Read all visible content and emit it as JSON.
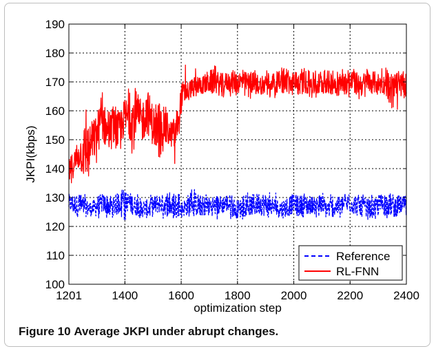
{
  "caption": {
    "label": "Figure 10",
    "text": "Average JKPI under abrupt changes."
  },
  "chart_data": {
    "type": "line",
    "title": "",
    "xlabel": "optimization step",
    "ylabel": "JKPI(kbps)",
    "xlim": [
      1201,
      2400
    ],
    "ylim": [
      100,
      190
    ],
    "xticks": [
      1201,
      1400,
      1600,
      1800,
      2000,
      2200,
      2400
    ],
    "xtick_labels": [
      "1201",
      "1400",
      "1600",
      "1800",
      "2000",
      "2200",
      "2400"
    ],
    "yticks": [
      100,
      110,
      120,
      130,
      140,
      150,
      160,
      170,
      180,
      190
    ],
    "ytick_labels": [
      "100",
      "110",
      "120",
      "130",
      "140",
      "150",
      "160",
      "170",
      "180",
      "190"
    ],
    "grid": true,
    "legend_position": "bottom-right",
    "series": [
      {
        "name": "Reference",
        "color": "#0000ff",
        "style": "dashed",
        "x": [
          1201,
          1240,
          1280,
          1320,
          1360,
          1400,
          1440,
          1480,
          1520,
          1560,
          1600,
          1640,
          1680,
          1720,
          1760,
          1800,
          1840,
          1880,
          1920,
          1960,
          2000,
          2040,
          2080,
          2120,
          2160,
          2200,
          2240,
          2280,
          2320,
          2360,
          2400
        ],
        "y": [
          128,
          127,
          126,
          128,
          127,
          129,
          127,
          126,
          128,
          127,
          126,
          128,
          127,
          127,
          128,
          126,
          127,
          128,
          127,
          126,
          128,
          127,
          128,
          126,
          127,
          128,
          127,
          126,
          128,
          127,
          128
        ],
        "min": [
          122,
          122,
          123,
          122,
          123,
          122,
          123,
          122,
          123,
          122,
          123,
          122,
          123,
          122,
          123,
          122,
          123,
          122,
          123,
          122,
          123,
          122,
          123,
          122,
          123,
          122,
          123,
          122,
          123,
          122,
          123
        ],
        "max": [
          132,
          132,
          131,
          132,
          132,
          133,
          132,
          131,
          132,
          132,
          131,
          133,
          132,
          131,
          132,
          131,
          132,
          133,
          132,
          131,
          132,
          132,
          131,
          132,
          131,
          132,
          132,
          131,
          133,
          132,
          131
        ]
      },
      {
        "name": "RL-FNN",
        "color": "#ff0000",
        "style": "solid",
        "x": [
          1201,
          1220,
          1240,
          1260,
          1280,
          1300,
          1320,
          1340,
          1360,
          1380,
          1400,
          1420,
          1440,
          1460,
          1480,
          1500,
          1520,
          1540,
          1560,
          1580,
          1600,
          1620,
          1640,
          1660,
          1680,
          1700,
          1720,
          1740,
          1760,
          1780,
          1800,
          1840,
          1880,
          1920,
          1960,
          2000,
          2040,
          2080,
          2120,
          2160,
          2200,
          2240,
          2280,
          2320,
          2360,
          2400
        ],
        "y": [
          139,
          142,
          145,
          146,
          148,
          152,
          157,
          152,
          154,
          153,
          158,
          157,
          159,
          156,
          160,
          155,
          153,
          155,
          152,
          152,
          164,
          167,
          168,
          169,
          169,
          170,
          170,
          169,
          170,
          170,
          170,
          170,
          169,
          170,
          170,
          169,
          170,
          169,
          170,
          169,
          170,
          169,
          170,
          169,
          169,
          169
        ],
        "min": [
          134,
          135,
          137,
          133,
          140,
          142,
          146,
          146,
          139,
          145,
          150,
          145,
          146,
          144,
          148,
          146,
          143,
          147,
          140,
          141,
          156,
          163,
          164,
          165,
          165,
          164,
          165,
          164,
          165,
          165,
          165,
          164,
          165,
          164,
          165,
          164,
          165,
          164,
          165,
          163,
          164,
          164,
          165,
          165,
          159,
          164
        ],
        "max": [
          144,
          148,
          151,
          162,
          157,
          161,
          167,
          160,
          162,
          162,
          171,
          166,
          169,
          165,
          170,
          164,
          163,
          167,
          157,
          160,
          170,
          179,
          175,
          176,
          174,
          175,
          176,
          174,
          174,
          175,
          175,
          174,
          175,
          174,
          175,
          174,
          175,
          174,
          175,
          174,
          175,
          174,
          175,
          175,
          174,
          174
        ]
      }
    ]
  }
}
